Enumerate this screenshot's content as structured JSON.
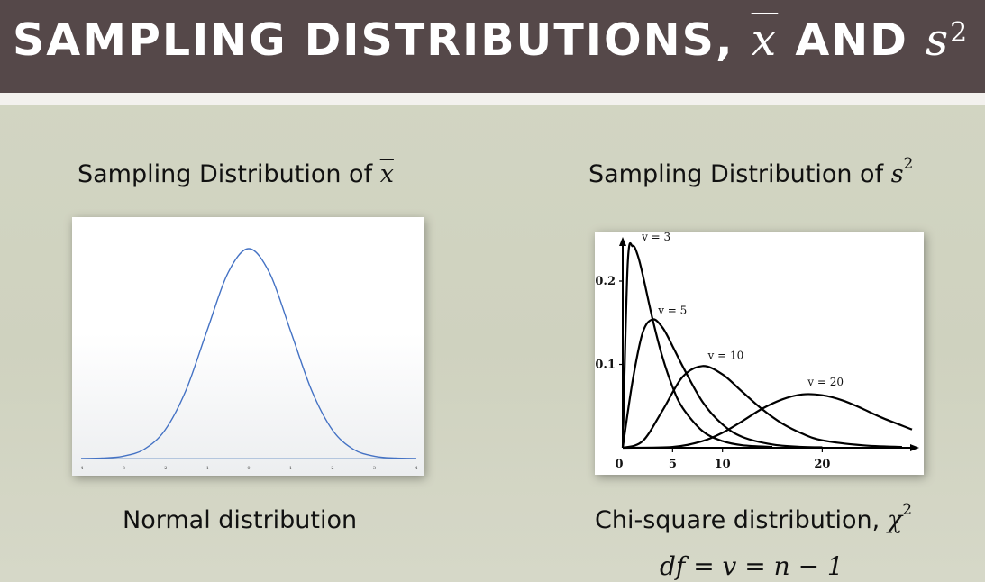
{
  "title": {
    "text": "SAMPLING DISTRIBUTIONS,",
    "xbar_symbol": "x",
    "and_text": "AND",
    "s_symbol": "s",
    "exponent": "2"
  },
  "left": {
    "heading_text": "Sampling Distribution of",
    "heading_symbol": "x",
    "caption": "Normal distribution"
  },
  "right": {
    "heading_text": "Sampling Distribution of",
    "heading_symbol": "s",
    "heading_exponent": "2",
    "caption_text": "Chi-square distribution,",
    "caption_symbol": "χ",
    "caption_exponent": "2",
    "formula": "df = v = n − 1"
  },
  "colors": {
    "title_bar": "#554849",
    "normal_curve": "#4472c4",
    "chi_curves": "#000000"
  },
  "chart_data": [
    {
      "type": "line",
      "distribution": "standard normal",
      "x_ticks": [
        "-4",
        "-3",
        "-2",
        "-1",
        "0",
        "1",
        "2",
        "3",
        "4"
      ],
      "xlim": [
        -4,
        4
      ],
      "series": [
        {
          "x": [
            -4,
            -3.5,
            -3,
            -2.5,
            -2,
            -1.5,
            -1,
            -0.5,
            0,
            0.5,
            1,
            1.5,
            2,
            2.5,
            3,
            3.5,
            4
          ],
          "values": [
            0.0001,
            0.0009,
            0.0044,
            0.0175,
            0.054,
            0.1295,
            0.242,
            0.3521,
            0.3989,
            0.3521,
            0.242,
            0.1295,
            0.054,
            0.0175,
            0.0044,
            0.0009,
            0.0001
          ]
        }
      ]
    },
    {
      "type": "line",
      "distribution": "chi-square",
      "x_ticks": [
        "0",
        "5",
        "10",
        "20"
      ],
      "y_ticks": [
        "0.1",
        "0.2"
      ],
      "xlim": [
        0,
        29
      ],
      "ylim": [
        0,
        0.24
      ],
      "series": [
        {
          "name": "v = 3",
          "x": [
            0,
            0.5,
            1,
            1.5,
            2,
            3,
            4,
            5,
            6,
            8,
            10,
            12,
            15
          ],
          "values": [
            0,
            0.22,
            0.242,
            0.231,
            0.208,
            0.154,
            0.108,
            0.073,
            0.048,
            0.02,
            0.008,
            0.003,
            0.001
          ]
        },
        {
          "name": "v = 5",
          "x": [
            0,
            1,
            2,
            3,
            4,
            5,
            6,
            8,
            10,
            12,
            15,
            18,
            20
          ],
          "values": [
            0,
            0.081,
            0.138,
            0.154,
            0.144,
            0.122,
            0.098,
            0.055,
            0.028,
            0.013,
            0.004,
            0.001,
            0.0005
          ]
        },
        {
          "name": "v = 10",
          "x": [
            0,
            2,
            4,
            6,
            8,
            10,
            12,
            14,
            16,
            18,
            20,
            24,
            28
          ],
          "values": [
            0,
            0.008,
            0.045,
            0.085,
            0.098,
            0.088,
            0.067,
            0.046,
            0.029,
            0.017,
            0.009,
            0.003,
            0.001
          ]
        },
        {
          "name": "v = 20",
          "x": [
            0,
            5,
            8,
            10,
            12,
            14,
            16,
            18,
            20,
            22,
            24,
            26,
            29
          ],
          "values": [
            0,
            0.001,
            0.008,
            0.018,
            0.032,
            0.047,
            0.058,
            0.064,
            0.063,
            0.057,
            0.047,
            0.036,
            0.022
          ]
        }
      ]
    }
  ]
}
